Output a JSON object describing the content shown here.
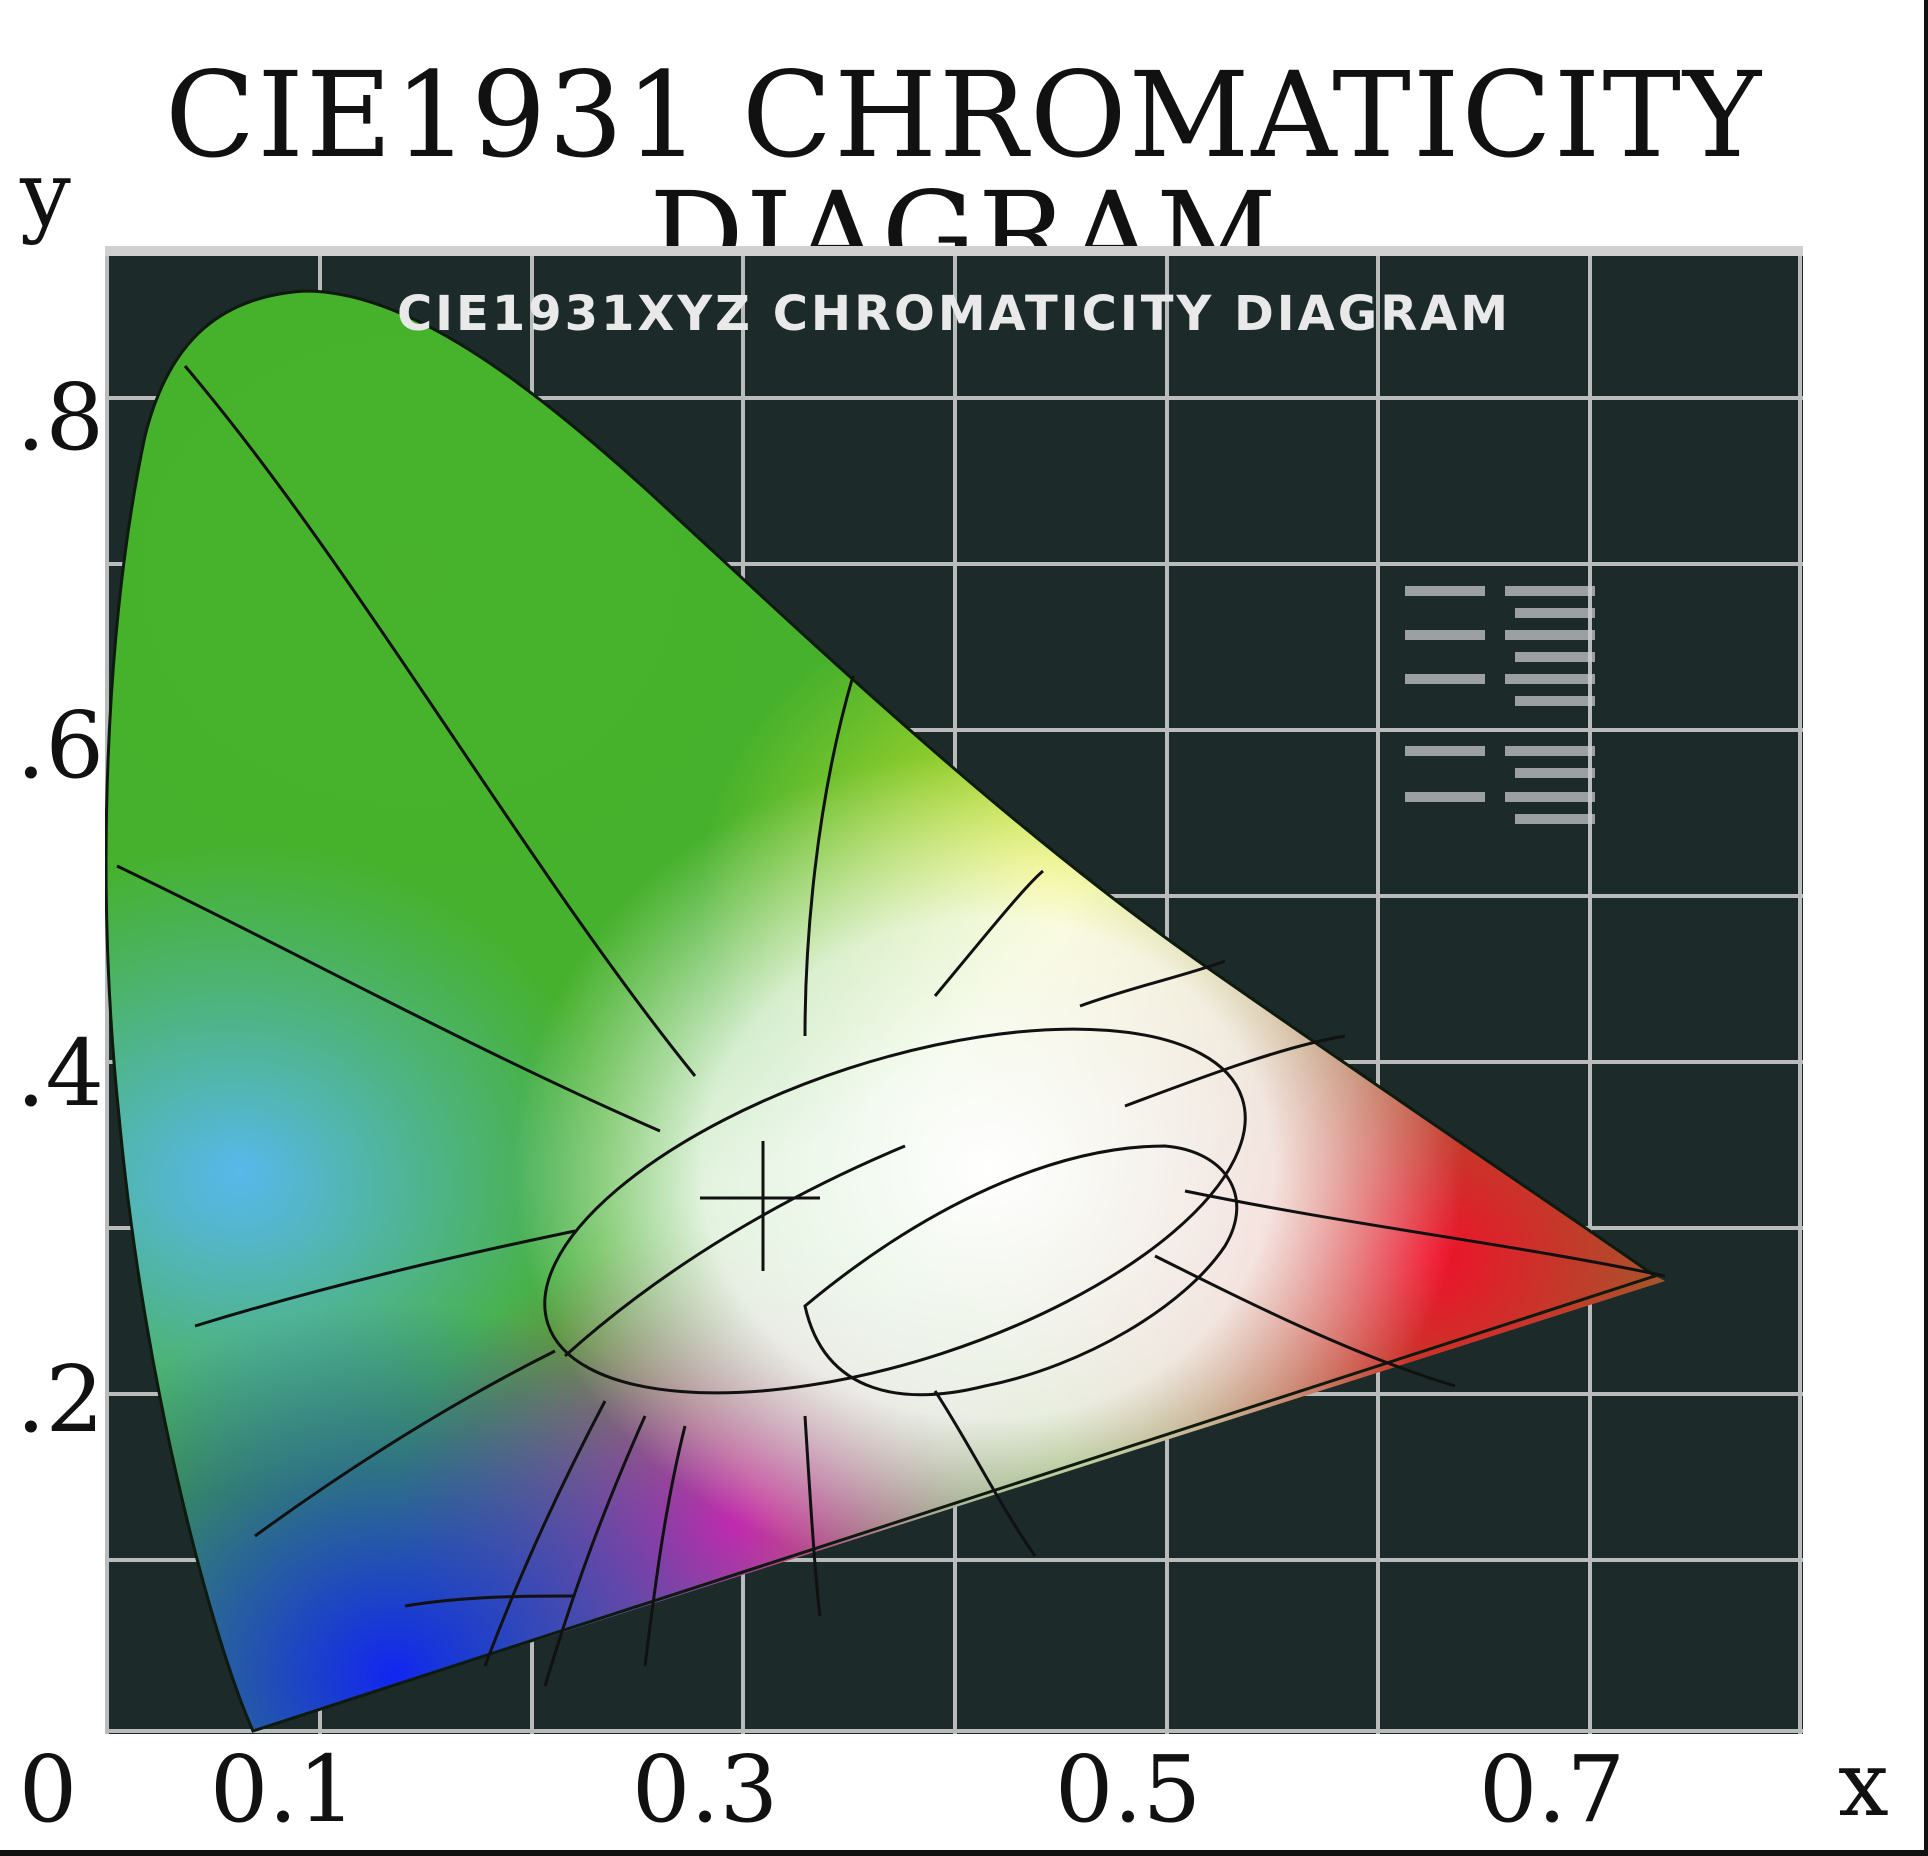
{
  "title": "CIE1931 CHROMATICITY DIAGRAM",
  "inner_title": "CIE1931XYZ CHROMATICITY DIAGRAM",
  "axes": {
    "x_label": "x",
    "y_label": "y",
    "x_ticks": [
      "0",
      "0.1",
      "0.3",
      "0.5",
      "0.7"
    ],
    "y_ticks": [
      ".8",
      ".6",
      ".4",
      ".2"
    ]
  },
  "colors": {
    "background": "#1c2a2a",
    "grid": "#d8d8d8",
    "green": "#3fb52a",
    "yellow": "#f3ee2a",
    "red": "#f0122a",
    "blue": "#1a2cf0",
    "cyan": "#69c6f2",
    "magenta": "#f0278a"
  }
}
